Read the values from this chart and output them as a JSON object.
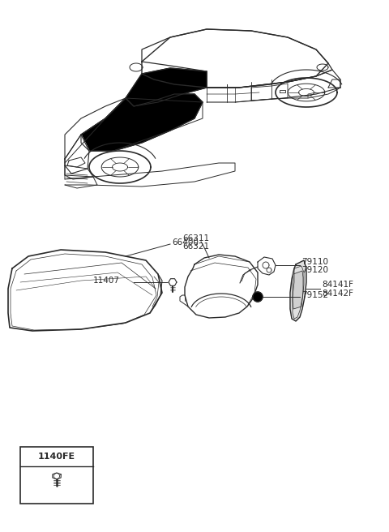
{
  "bg_color": "#ffffff",
  "line_color": "#2a2a2a",
  "parts_labels": {
    "hood": "66400",
    "hinge1": "79110",
    "hinge2": "79120",
    "bump": "79152",
    "fender1": "66311",
    "fender2": "66321",
    "bolt": "11407",
    "panel1": "84141F",
    "panel2": "84142F",
    "legend": "1140FE"
  }
}
